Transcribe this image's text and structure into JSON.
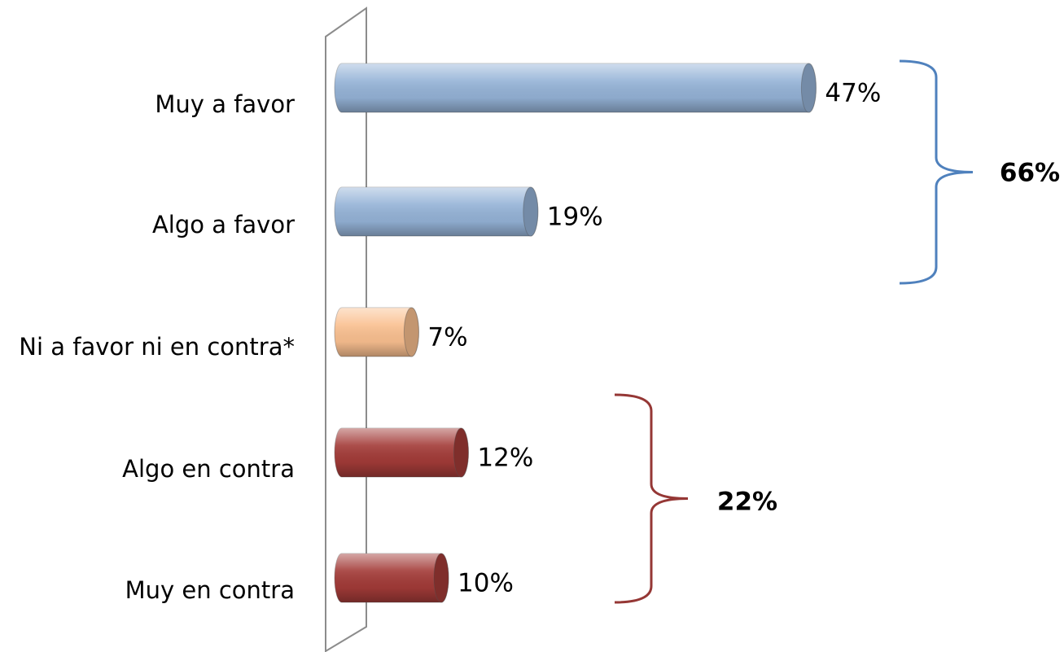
{
  "chart_data": {
    "type": "bar",
    "orientation": "horizontal",
    "categories": [
      "Muy a favor",
      "Algo a favor",
      "Ni a favor ni en contra*",
      "Algo en contra",
      "Muy en contra"
    ],
    "values": [
      47,
      19,
      7,
      12,
      10
    ],
    "value_labels": [
      "47%",
      "19%",
      "7%",
      "12%",
      "10%"
    ],
    "colors": [
      "#95b3d7",
      "#95b3d7",
      "#fac090",
      "#a33b38",
      "#a33b38"
    ],
    "annotations": [
      {
        "label": "66%",
        "color": "#4f81bd"
      },
      {
        "label": "22%",
        "color": "#953735"
      }
    ]
  }
}
